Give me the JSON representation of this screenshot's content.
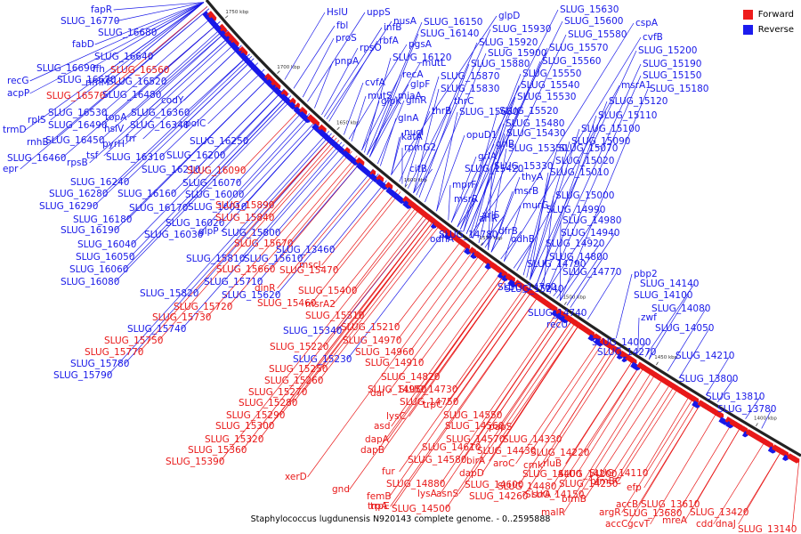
{
  "caption": "Staphylococcus lugdunensis N920143 complete genome. - 0..2595888",
  "legend": [
    {
      "label": "Forward",
      "color": "#ee1c1c"
    },
    {
      "label": "Reverse",
      "color": "#1c1cee"
    }
  ],
  "ticks": [
    {
      "label": "1750 kbp",
      "kbp": 1750
    },
    {
      "label": "1700 kbp",
      "kbp": 1700
    },
    {
      "label": "1650 kbp",
      "kbp": 1650
    },
    {
      "label": "1600 kbp",
      "kbp": 1600
    },
    {
      "label": "1550 kbp",
      "kbp": 1550
    },
    {
      "label": "1500 kbp",
      "kbp": 1500
    },
    {
      "label": "1450 kbp",
      "kbp": 1450
    },
    {
      "label": "1400 kbp",
      "kbp": 1400
    }
  ],
  "labels": [
    {
      "t": "fapR",
      "s": "r"
    },
    {
      "t": "SLUG_16770",
      "s": "r"
    },
    {
      "t": "SLUG_16680",
      "s": "r"
    },
    {
      "t": "fabD",
      "s": "r"
    },
    {
      "t": "SLUG_16640",
      "s": "r"
    },
    {
      "t": "SLUG_16690",
      "s": "r"
    },
    {
      "t": "SLUG_16670",
      "s": "r"
    },
    {
      "t": "ffh",
      "s": "r"
    },
    {
      "t": "SLUG_16560",
      "s": "f"
    },
    {
      "t": "recG",
      "s": "r"
    },
    {
      "t": "rimM",
      "s": "r"
    },
    {
      "t": "SLUG_16520",
      "s": "r"
    },
    {
      "t": "acpP",
      "s": "r"
    },
    {
      "t": "SLUG_16570",
      "s": "f"
    },
    {
      "t": "SLUG_16480",
      "s": "r"
    },
    {
      "t": "codY",
      "s": "r"
    },
    {
      "t": "SLUG_16530",
      "s": "r"
    },
    {
      "t": "SLUG_16360",
      "s": "r"
    },
    {
      "t": "topA",
      "s": "r"
    },
    {
      "t": "rplS",
      "s": "r"
    },
    {
      "t": "SLUG_16490",
      "s": "r"
    },
    {
      "t": "hslV",
      "s": "r"
    },
    {
      "t": "SLUG_16340",
      "s": "r"
    },
    {
      "t": "polC",
      "s": "r"
    },
    {
      "t": "trmD",
      "s": "r"
    },
    {
      "t": "frr",
      "s": "r"
    },
    {
      "t": "rnhB",
      "s": "r"
    },
    {
      "t": "SLUG_16450",
      "s": "r"
    },
    {
      "t": "pyrH",
      "s": "r"
    },
    {
      "t": "SLUG_16250",
      "s": "r"
    },
    {
      "t": "tsf",
      "s": "r"
    },
    {
      "t": "SLUG_16310",
      "s": "r"
    },
    {
      "t": "SLUG_16200",
      "s": "r"
    },
    {
      "t": "SLUG_16460",
      "s": "r"
    },
    {
      "t": "rpsB",
      "s": "r"
    },
    {
      "t": "epr",
      "s": "r"
    },
    {
      "t": "SLUG_16210",
      "s": "r"
    },
    {
      "t": "SLUG_16090",
      "s": "f"
    },
    {
      "t": "SLUG_16240",
      "s": "r"
    },
    {
      "t": "SLUG_16070",
      "s": "r"
    },
    {
      "t": "SLUG_16280",
      "s": "r"
    },
    {
      "t": "SLUG_16160",
      "s": "r"
    },
    {
      "t": "SLUG_16000",
      "s": "r"
    },
    {
      "t": "SLUG_16290",
      "s": "r"
    },
    {
      "t": "SLUG_16170",
      "s": "r"
    },
    {
      "t": "SLUG_16010",
      "s": "r"
    },
    {
      "t": "SLUG_15890",
      "s": "f"
    },
    {
      "t": "SLUG_16180",
      "s": "r"
    },
    {
      "t": "SLUG_16020",
      "s": "r"
    },
    {
      "t": "SLUG_15840",
      "s": "f"
    },
    {
      "t": "SLUG_16190",
      "s": "r"
    },
    {
      "t": "SLUG_16030",
      "s": "r"
    },
    {
      "t": "glpP",
      "s": "r"
    },
    {
      "t": "SLUG_15800",
      "s": "r"
    },
    {
      "t": "SLUG_16040",
      "s": "r"
    },
    {
      "t": "SLUG_15670",
      "s": "f"
    },
    {
      "t": "SLUG_16050",
      "s": "r"
    },
    {
      "t": "SLUG_15810",
      "s": "r"
    },
    {
      "t": "SLUG_15610",
      "s": "r"
    },
    {
      "t": "mscL",
      "s": "f"
    },
    {
      "t": "SLUG_16060",
      "s": "r"
    },
    {
      "t": "SLUG_15660",
      "s": "f"
    },
    {
      "t": "SLUG_15470",
      "s": "f"
    },
    {
      "t": "SLUG_16080",
      "s": "r"
    },
    {
      "t": "SLUG_15710",
      "s": "r"
    },
    {
      "t": "dinR",
      "s": "f"
    },
    {
      "t": "SLUG_15820",
      "s": "r"
    },
    {
      "t": "SLUG_15620",
      "s": "r"
    },
    {
      "t": "SLUG_15400",
      "s": "f"
    },
    {
      "t": "SLUG_15720",
      "s": "f"
    },
    {
      "t": "SLUG_15460",
      "s": "f"
    },
    {
      "t": "msrA2",
      "s": "f"
    },
    {
      "t": "SLUG_15730",
      "s": "f"
    },
    {
      "t": "SLUG_15310",
      "s": "f"
    },
    {
      "t": "SLUG_15740",
      "s": "r"
    },
    {
      "t": "SLUG_15340",
      "s": "r"
    },
    {
      "t": "SLUG_15210",
      "s": "f"
    },
    {
      "t": "SLUG_15750",
      "s": "f"
    },
    {
      "t": "SLUG_14970",
      "s": "f"
    },
    {
      "t": "SLUG_15770",
      "s": "f"
    },
    {
      "t": "SLUG_15220",
      "s": "f"
    },
    {
      "t": "SLUG_14960",
      "s": "f"
    },
    {
      "t": "SLUG_15780",
      "s": "r"
    },
    {
      "t": "SLUG_15230",
      "s": "r"
    },
    {
      "t": "SLUG_14910",
      "s": "f"
    },
    {
      "t": "SLUG_15790",
      "s": "r"
    },
    {
      "t": "SLUG_15250",
      "s": "f"
    },
    {
      "t": "SLUG_15260",
      "s": "f"
    },
    {
      "t": "SLUG_14820",
      "s": "f"
    },
    {
      "t": "SLUG_15270",
      "s": "f"
    },
    {
      "t": "SLUG_14950",
      "s": "f"
    },
    {
      "t": "SLUG_14730",
      "s": "f"
    },
    {
      "t": "SLUG_15280",
      "s": "f"
    },
    {
      "t": "SLUG_14750",
      "s": "f"
    },
    {
      "t": "trpC",
      "s": "f"
    },
    {
      "t": "lysC",
      "s": "f"
    },
    {
      "t": "SLUG_15290",
      "s": "f"
    },
    {
      "t": "dal",
      "s": "f"
    },
    {
      "t": "SLUG_14550",
      "s": "f"
    },
    {
      "t": "SLUG_15300",
      "s": "f"
    },
    {
      "t": "asd",
      "s": "f"
    },
    {
      "t": "SLUG_14560",
      "s": "f"
    },
    {
      "t": "papS",
      "s": "f"
    },
    {
      "t": "SLUG_15320",
      "s": "f"
    },
    {
      "t": "dapA",
      "s": "f"
    },
    {
      "t": "SLUG_14570",
      "s": "f"
    },
    {
      "t": "SLUG_14330",
      "s": "f"
    },
    {
      "t": "SLUG_15360",
      "s": "f"
    },
    {
      "t": "dapB",
      "s": "f"
    },
    {
      "t": "SLUG_14610",
      "s": "f"
    },
    {
      "t": "SLUG_14430",
      "s": "f"
    },
    {
      "t": "SLUG_14220",
      "s": "f"
    },
    {
      "t": "SLUG_15390",
      "s": "f"
    },
    {
      "t": "SLUG_14580",
      "s": "f"
    },
    {
      "t": "birA",
      "s": "f"
    },
    {
      "t": "aroC",
      "s": "f"
    },
    {
      "t": "cmk",
      "s": "f"
    },
    {
      "t": "rluB",
      "s": "f"
    },
    {
      "t": "fur",
      "s": "f"
    },
    {
      "t": "dapD",
      "s": "f"
    },
    {
      "t": "SLUG_14400",
      "s": "f"
    },
    {
      "t": "SLUG_14200",
      "s": "f"
    },
    {
      "t": "xerD",
      "s": "f"
    },
    {
      "t": "SLUG_14880",
      "s": "f"
    },
    {
      "t": "SLUG_14600",
      "s": "f"
    },
    {
      "t": "SLUG_14250",
      "s": "f"
    },
    {
      "t": "SLUG_14110",
      "s": "f"
    },
    {
      "t": "gnd",
      "s": "f"
    },
    {
      "t": "lysA",
      "s": "f"
    },
    {
      "t": "SLUG_14480",
      "s": "f"
    },
    {
      "t": "srrA",
      "s": "f"
    },
    {
      "t": "bfmBC",
      "s": "f"
    },
    {
      "t": "efp",
      "s": "f"
    },
    {
      "t": "femB",
      "s": "f"
    },
    {
      "t": "asnS",
      "s": "f"
    },
    {
      "t": "SLUG_14260",
      "s": "f"
    },
    {
      "t": "SLUG_14150",
      "s": "f"
    },
    {
      "t": "bfmB",
      "s": "f"
    },
    {
      "t": "accB",
      "s": "f"
    },
    {
      "t": "trpE",
      "s": "f"
    },
    {
      "t": "malR",
      "s": "f"
    },
    {
      "t": "argR",
      "s": "f"
    },
    {
      "t": "SLUG_13610",
      "s": "f"
    },
    {
      "t": "trpA",
      "s": "f"
    },
    {
      "t": "SLUG_14500",
      "s": "f"
    },
    {
      "t": "SLUG_13680",
      "s": "f"
    },
    {
      "t": "SLUG_13420",
      "s": "f"
    },
    {
      "t": "accC",
      "s": "f"
    },
    {
      "t": "gcvT",
      "s": "f"
    },
    {
      "t": "mreA",
      "s": "f"
    },
    {
      "t": "cdd",
      "s": "f"
    },
    {
      "t": "dnaJ",
      "s": "f"
    },
    {
      "t": "SLUG_13140",
      "s": "f"
    },
    {
      "t": "HslU",
      "s": "r"
    },
    {
      "t": "uppS",
      "s": "r"
    },
    {
      "t": "nusA",
      "s": "r"
    },
    {
      "t": "SLUG_16150",
      "s": "r"
    },
    {
      "t": "glpD",
      "s": "r"
    },
    {
      "t": "fbl",
      "s": "r"
    },
    {
      "t": "infB",
      "s": "r"
    },
    {
      "t": "SLUG_16140",
      "s": "r"
    },
    {
      "t": "SLUG_15930",
      "s": "r"
    },
    {
      "t": "proS",
      "s": "r"
    },
    {
      "t": "rbfA",
      "s": "r"
    },
    {
      "t": "pgsA",
      "s": "r"
    },
    {
      "t": "SLUG_15920",
      "s": "r"
    },
    {
      "t": "rpsO",
      "s": "r"
    },
    {
      "t": "SLUG_15900",
      "s": "r"
    },
    {
      "t": "SLUG_16120",
      "s": "r"
    },
    {
      "t": "pnpA",
      "s": "r"
    },
    {
      "t": "mutL",
      "s": "r"
    },
    {
      "t": "SLUG_15880",
      "s": "r"
    },
    {
      "t": "recA",
      "s": "r"
    },
    {
      "t": "SLUG_15870",
      "s": "r"
    },
    {
      "t": "cvfA",
      "s": "r"
    },
    {
      "t": "glpF",
      "s": "r"
    },
    {
      "t": "SLUG_15830",
      "s": "r"
    },
    {
      "t": "mutS",
      "s": "r"
    },
    {
      "t": "miaA",
      "s": "r"
    },
    {
      "t": "glpK",
      "s": "r"
    },
    {
      "t": "glnR",
      "s": "r"
    },
    {
      "t": "thrC",
      "s": "r"
    },
    {
      "t": "glnA",
      "s": "r"
    },
    {
      "t": "thrB",
      "s": "r"
    },
    {
      "t": "SLUG_15680",
      "s": "r"
    },
    {
      "t": "nucI",
      "s": "r"
    },
    {
      "t": "opuD1",
      "s": "r"
    },
    {
      "t": "katA",
      "s": "r"
    },
    {
      "t": "grlB",
      "s": "r"
    },
    {
      "t": "rpmG2",
      "s": "r"
    },
    {
      "t": "grlA",
      "s": "r"
    },
    {
      "t": "citB",
      "s": "r"
    },
    {
      "t": "SLUG_15420",
      "s": "r"
    },
    {
      "t": "mprF",
      "s": "r"
    },
    {
      "t": "msrR",
      "s": "r"
    },
    {
      "t": "SLUG_15630",
      "s": "r"
    },
    {
      "t": "SLUG_15600",
      "s": "r"
    },
    {
      "t": "SLUG_15580",
      "s": "r"
    },
    {
      "t": "SLUG_15570",
      "s": "r"
    },
    {
      "t": "SLUG_15560",
      "s": "r"
    },
    {
      "t": "SLUG_15550",
      "s": "r"
    },
    {
      "t": "SLUG_15540",
      "s": "r"
    },
    {
      "t": "SLUG_15530",
      "s": "r"
    },
    {
      "t": "SLUG_15520",
      "s": "r"
    },
    {
      "t": "SLUG_15480",
      "s": "r"
    },
    {
      "t": "SLUG_15430",
      "s": "r"
    },
    {
      "t": "SLUG_15350",
      "s": "r"
    },
    {
      "t": "SLUG_15330",
      "s": "r"
    },
    {
      "t": "thyA",
      "s": "r"
    },
    {
      "t": "msrB",
      "s": "r"
    },
    {
      "t": "murG",
      "s": "r"
    },
    {
      "t": "arlR",
      "s": "r"
    },
    {
      "t": "arlS",
      "s": "r"
    },
    {
      "t": "dfrB",
      "s": "r"
    },
    {
      "t": "odhA",
      "s": "r"
    },
    {
      "t": "odhB",
      "s": "r"
    },
    {
      "t": "SLUG_15240",
      "s": "r"
    },
    {
      "t": "cspA",
      "s": "r"
    },
    {
      "t": "cvfB",
      "s": "r"
    },
    {
      "t": "SLUG_15200",
      "s": "r"
    },
    {
      "t": "SLUG_15190",
      "s": "r"
    },
    {
      "t": "SLUG_15180",
      "s": "r"
    },
    {
      "t": "SLUG_15150",
      "s": "r"
    },
    {
      "t": "msrA1",
      "s": "r"
    },
    {
      "t": "SLUG_15120",
      "s": "r"
    },
    {
      "t": "SLUG_15110",
      "s": "r"
    },
    {
      "t": "SLUG_15100",
      "s": "r"
    },
    {
      "t": "SLUG_15090",
      "s": "r"
    },
    {
      "t": "SLUG_15070",
      "s": "r"
    },
    {
      "t": "SLUG_15020",
      "s": "r"
    },
    {
      "t": "SLUG_15010",
      "s": "r"
    },
    {
      "t": "SLUG_15000",
      "s": "r"
    },
    {
      "t": "SLUG_14990",
      "s": "r"
    },
    {
      "t": "SLUG_14980",
      "s": "r"
    },
    {
      "t": "SLUG_14940",
      "s": "r"
    },
    {
      "t": "SLUG_14920",
      "s": "r"
    },
    {
      "t": "SLUG_14800",
      "s": "r"
    },
    {
      "t": "SLUG_14790",
      "s": "r"
    },
    {
      "t": "SLUG_14780",
      "s": "r"
    },
    {
      "t": "SLUG_14770",
      "s": "r"
    },
    {
      "t": "SLUG_14760",
      "s": "r"
    },
    {
      "t": "SLUG_14740",
      "s": "r"
    },
    {
      "t": "recU",
      "s": "r"
    },
    {
      "t": "pbp2",
      "s": "r"
    },
    {
      "t": "SLUG_14140",
      "s": "r"
    },
    {
      "t": "SLUG_14100",
      "s": "r"
    },
    {
      "t": "SLUG_14080",
      "s": "r"
    },
    {
      "t": "zwf",
      "s": "r"
    },
    {
      "t": "SLUG_14050",
      "s": "r"
    },
    {
      "t": "SLUG_14000",
      "s": "r"
    },
    {
      "t": "SLUG_14270",
      "s": "r"
    },
    {
      "t": "SLUG_14210",
      "s": "r"
    },
    {
      "t": "SLUG_13800",
      "s": "r"
    },
    {
      "t": "SLUG_13810",
      "s": "r"
    },
    {
      "t": "SLUG_13780",
      "s": "r"
    },
    {
      "t": "SLUG_13460",
      "s": "r"
    }
  ]
}
